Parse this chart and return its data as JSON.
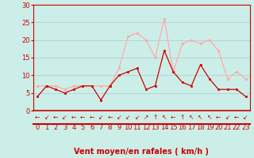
{
  "x": [
    0,
    1,
    2,
    3,
    4,
    5,
    6,
    7,
    8,
    9,
    10,
    11,
    12,
    13,
    14,
    15,
    16,
    17,
    18,
    19,
    20,
    21,
    22,
    23
  ],
  "wind_speed": [
    4,
    7,
    6,
    5,
    6,
    7,
    7,
    3,
    7,
    10,
    11,
    12,
    6,
    7,
    17,
    11,
    8,
    7,
    13,
    9,
    6,
    6,
    6,
    4
  ],
  "gusts": [
    7,
    7,
    7,
    6,
    7,
    7,
    7,
    7,
    7,
    12,
    21,
    22,
    20,
    15,
    26,
    11,
    19,
    20,
    19,
    20,
    17,
    9,
    11,
    9
  ],
  "wind_color": "#cc0000",
  "gust_color": "#ffaaaa",
  "bg_color": "#cceee8",
  "grid_color": "#aacccc",
  "axis_color": "#cc0000",
  "xlabel": "Vent moyen/en rafales ( km/h )",
  "ylim": [
    0,
    30
  ],
  "yticks": [
    0,
    5,
    10,
    15,
    20,
    25,
    30
  ],
  "xticks": [
    0,
    1,
    2,
    3,
    4,
    5,
    6,
    7,
    8,
    9,
    10,
    11,
    12,
    13,
    14,
    15,
    16,
    17,
    18,
    19,
    20,
    21,
    22,
    23
  ],
  "xlabel_fontsize": 7,
  "tick_fontsize": 6,
  "arrow_symbols": [
    "←",
    "↙",
    "←",
    "↙",
    "←",
    "←",
    "←",
    "↙",
    "←",
    "↙",
    "↙",
    "↙",
    "↗",
    "↑",
    "↖",
    "←",
    "↑",
    "↖",
    "↖",
    "↖",
    "←",
    "↙",
    "←",
    "↙"
  ]
}
